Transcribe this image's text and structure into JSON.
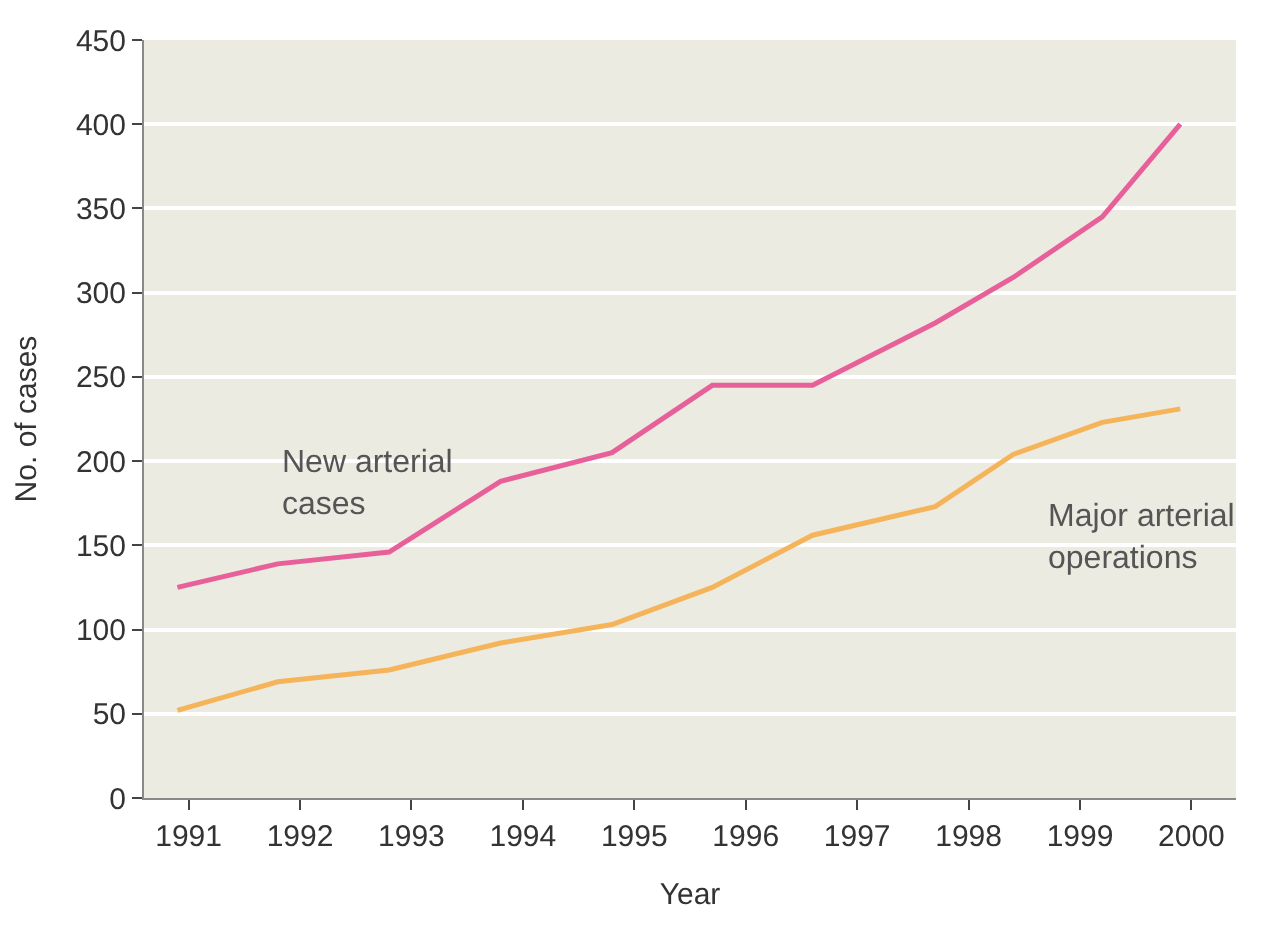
{
  "chart_data": {
    "type": "line",
    "xlabel": "Year",
    "ylabel": "No. of cases",
    "xlim": [
      1990.6,
      2000.4
    ],
    "xticks": [
      1991,
      1992,
      1993,
      1994,
      1995,
      1996,
      1997,
      1998,
      1999,
      2000
    ],
    "ylim": [
      0,
      450
    ],
    "yticks": [
      0,
      50,
      100,
      150,
      200,
      250,
      300,
      350,
      400,
      450
    ],
    "grid": "y",
    "series": [
      {
        "name": "New arterial cases",
        "color": "#e8609a",
        "x": [
          1990.9,
          1991.8,
          1992.8,
          1993.8,
          1994.8,
          1995.7,
          1996.6,
          1997.7,
          1998.4,
          1999.2,
          1999.9
        ],
        "values": [
          125,
          139,
          146,
          188,
          205,
          245,
          245,
          282,
          309,
          345,
          400
        ]
      },
      {
        "name": "Major arterial operations",
        "color": "#f5b45a",
        "x": [
          1990.9,
          1991.8,
          1992.8,
          1993.8,
          1994.8,
          1995.7,
          1996.6,
          1997.7,
          1998.4,
          1999.2,
          1999.9
        ],
        "values": [
          52,
          69,
          76,
          92,
          103,
          125,
          156,
          173,
          204,
          223,
          231
        ]
      }
    ]
  }
}
